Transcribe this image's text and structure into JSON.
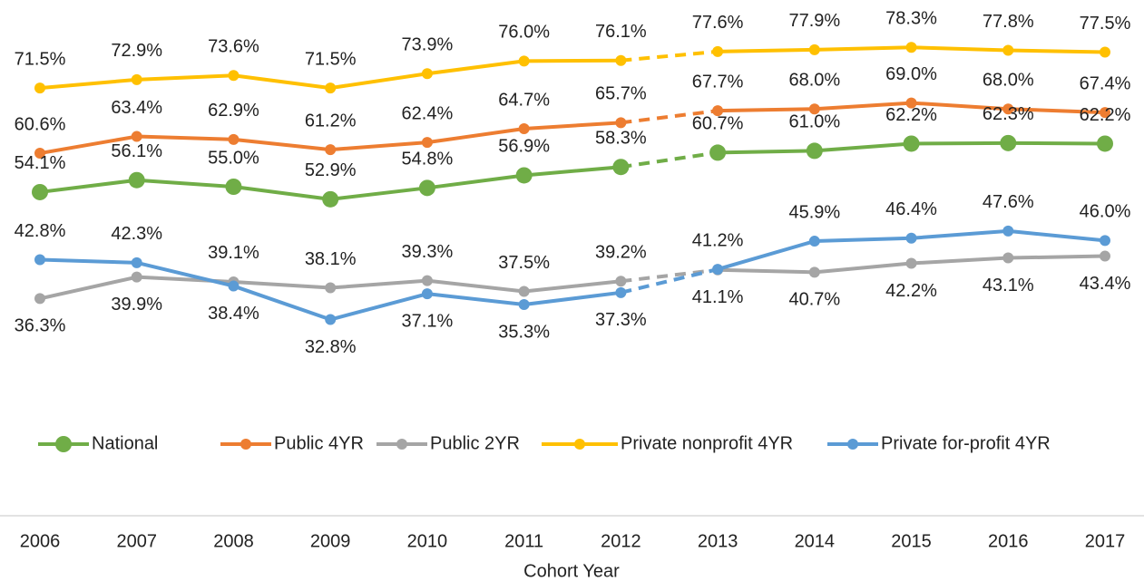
{
  "chart_data": {
    "type": "line",
    "x_label": "Cohort Year",
    "categories": [
      "2006",
      "2007",
      "2008",
      "2009",
      "2010",
      "2011",
      "2012",
      "2013",
      "2014",
      "2015",
      "2016",
      "2017"
    ],
    "ylim": [
      0,
      85
    ],
    "dashed_segment": [
      6,
      7
    ],
    "legend": "bottom",
    "series": [
      {
        "name": "National",
        "color": "#70ad47",
        "values": [
          54.1,
          56.1,
          55.0,
          52.9,
          54.8,
          56.9,
          58.3,
          60.7,
          61.0,
          62.2,
          62.3,
          62.2
        ],
        "value_labels": [
          "54.1%",
          "56.1%",
          "55.0%",
          "52.9%",
          "54.8%",
          "56.9%",
          "58.3%",
          "60.7%",
          "61.0%",
          "62.2%",
          "62.3%",
          "62.2%"
        ]
      },
      {
        "name": "Public 4YR",
        "color": "#ed7d31",
        "values": [
          60.6,
          63.4,
          62.9,
          61.2,
          62.4,
          64.7,
          65.7,
          67.7,
          68.0,
          69.0,
          68.0,
          67.4
        ],
        "value_labels": [
          "60.6%",
          "63.4%",
          "62.9%",
          "61.2%",
          "62.4%",
          "64.7%",
          "65.7%",
          "67.7%",
          "68.0%",
          "69.0%",
          "68.0%",
          "67.4%"
        ]
      },
      {
        "name": "Public 2YR",
        "color": "#a5a5a5",
        "values": [
          36.3,
          39.9,
          39.1,
          38.1,
          39.3,
          37.5,
          39.2,
          41.1,
          40.7,
          42.2,
          43.1,
          43.4
        ],
        "value_labels": [
          "36.3%",
          "39.9%",
          "39.1%",
          "38.1%",
          "39.3%",
          "37.5%",
          "39.2%",
          "41.1%",
          "40.7%",
          "42.2%",
          "43.1%",
          "43.4%"
        ]
      },
      {
        "name": "Private nonprofit 4YR",
        "color": "#ffc000",
        "values": [
          71.5,
          72.9,
          73.6,
          71.5,
          73.9,
          76.0,
          76.1,
          77.6,
          77.9,
          78.3,
          77.8,
          77.5
        ],
        "value_labels": [
          "71.5%",
          "72.9%",
          "73.6%",
          "71.5%",
          "73.9%",
          "76.0%",
          "76.1%",
          "77.6%",
          "77.9%",
          "78.3%",
          "77.8%",
          "77.5%"
        ]
      },
      {
        "name": "Private for-profit 4YR",
        "color": "#5b9bd5",
        "values": [
          42.8,
          42.3,
          38.4,
          32.8,
          37.1,
          35.3,
          37.3,
          41.2,
          45.9,
          46.4,
          47.6,
          46.0
        ],
        "value_labels": [
          "42.8%",
          "42.3%",
          "38.4%",
          "32.8%",
          "37.1%",
          "35.3%",
          "37.3%",
          "41.2%",
          "45.9%",
          "46.4%",
          "47.6%",
          "46.0%"
        ]
      }
    ]
  }
}
